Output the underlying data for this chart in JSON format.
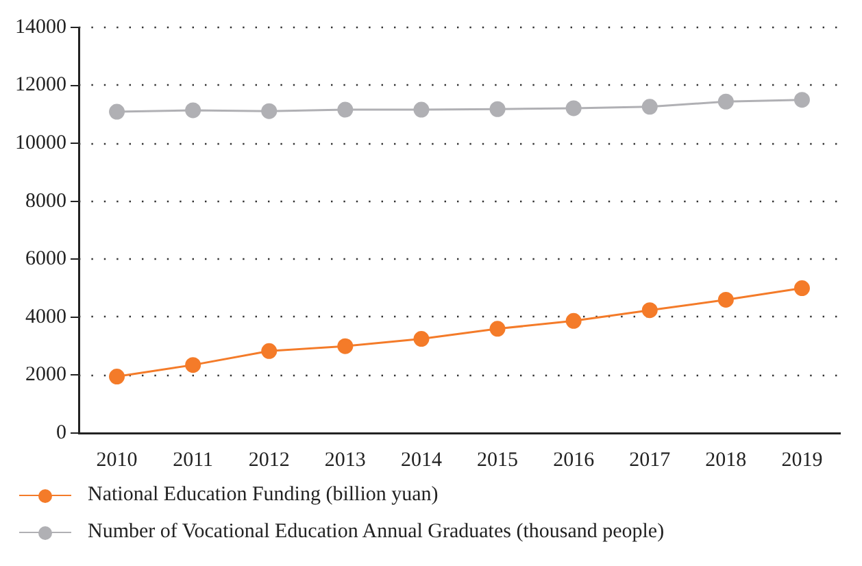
{
  "chart_data": {
    "type": "line",
    "categories": [
      "2010",
      "2011",
      "2012",
      "2013",
      "2014",
      "2015",
      "2016",
      "2017",
      "2018",
      "2019"
    ],
    "series": [
      {
        "name": "National Education Funding (billion yuan)",
        "color": "#f47b29",
        "values": [
          1950,
          2350,
          2830,
          3000,
          3250,
          3600,
          3870,
          4240,
          4600,
          5000
        ]
      },
      {
        "name": "Number of Vocational Education Annual Graduates (thousand people)",
        "color": "#b0b0b4",
        "values": [
          11090,
          11140,
          11110,
          11160,
          11160,
          11180,
          11210,
          11260,
          11440,
          11500
        ]
      }
    ],
    "ylim": [
      0,
      14000
    ],
    "yticks": [
      0,
      2000,
      4000,
      6000,
      8000,
      10000,
      12000,
      14000
    ],
    "grid": "y",
    "legend": "bottom",
    "marker": "circle",
    "line_style": "solid"
  }
}
